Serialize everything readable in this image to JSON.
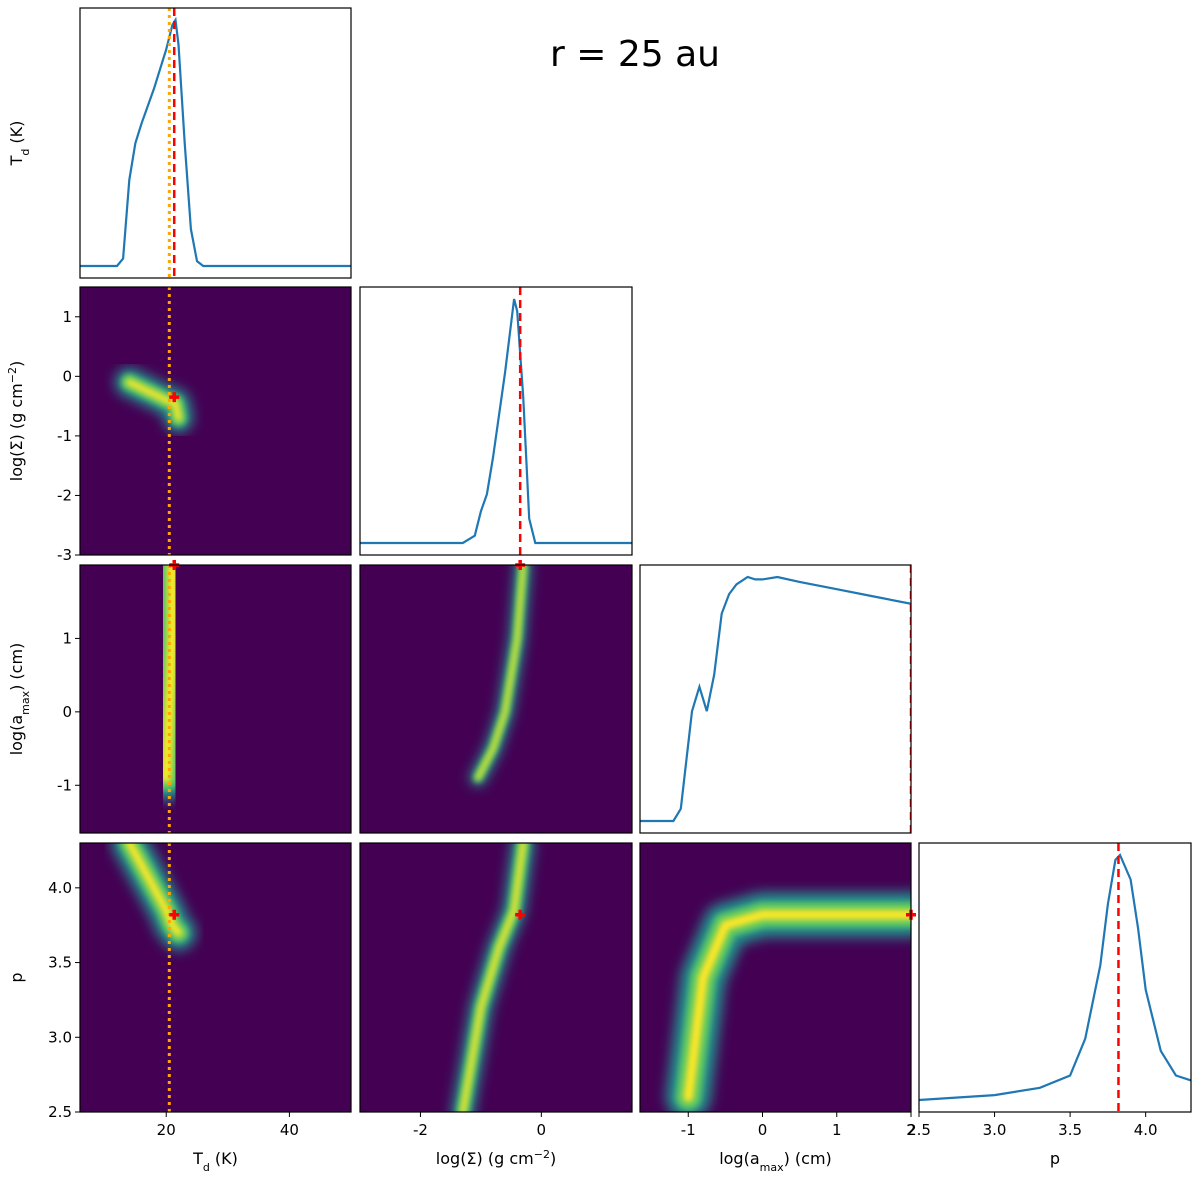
{
  "chart_data": {
    "type": "corner",
    "title": "r = 25 au",
    "colormap": [
      "#440154",
      "#21918c",
      "#5ec962",
      "#fde725"
    ],
    "curve_color": "#1f77b4",
    "truth_color": "#ff0000",
    "alt_color": "#ffa500",
    "truth": [
      21.3,
      -0.35,
      2,
      3.82
    ],
    "alt_Td": 20.5,
    "params": [
      {
        "label": [
          "T",
          "d",
          " (K)"
        ],
        "script": "sub",
        "lim": [
          6,
          50
        ],
        "xticks": [
          20,
          40
        ],
        "yticks": [],
        "x": [
          6,
          8,
          10,
          12,
          13,
          14,
          15,
          16,
          18,
          20,
          21,
          21.5,
          22,
          23,
          24,
          25,
          26,
          28,
          30,
          40,
          50
        ],
        "density": [
          0,
          0,
          0,
          0,
          0.03,
          0.35,
          0.5,
          0.58,
          0.72,
          0.88,
          0.98,
          1,
          0.9,
          0.5,
          0.15,
          0.02,
          0,
          0,
          0,
          0,
          0
        ]
      },
      {
        "label": [
          "log(Σ) (g cm",
          "−2",
          ")"
        ],
        "script": "sup",
        "lim": [
          -3,
          1.5
        ],
        "xticks": [
          -2,
          0
        ],
        "yticks": [
          -3,
          -2,
          -1,
          0,
          1
        ],
        "x": [
          -3,
          -2,
          -1.3,
          -1.1,
          -1.0,
          -0.9,
          -0.8,
          -0.6,
          -0.45,
          -0.4,
          -0.3,
          -0.2,
          -0.1,
          0,
          1.5
        ],
        "density": [
          0,
          0,
          0,
          0.03,
          0.13,
          0.2,
          0.35,
          0.7,
          1,
          0.95,
          0.6,
          0.1,
          0,
          0,
          0
        ]
      },
      {
        "label": [
          "log(a",
          "max",
          ") (cm)"
        ],
        "script": "sub",
        "lim": [
          -1.65,
          2
        ],
        "xticks": [
          -1,
          0,
          1,
          2
        ],
        "yticks": [
          -1,
          0,
          1
        ],
        "x": [
          -1.65,
          -1.2,
          -1.1,
          -0.95,
          -0.85,
          -0.75,
          -0.65,
          -0.55,
          -0.45,
          -0.35,
          -0.2,
          -0.1,
          0,
          0.2,
          0.5,
          1,
          1.5,
          2
        ],
        "density": [
          0,
          0,
          0.05,
          0.45,
          0.55,
          0.45,
          0.6,
          0.85,
          0.93,
          0.97,
          1,
          0.99,
          0.99,
          1,
          0.98,
          0.95,
          0.92,
          0.89
        ]
      },
      {
        "label": [
          "p"
        ],
        "script": "none",
        "lim": [
          2.5,
          4.3
        ],
        "xticks": [
          2.5,
          {
            "value": 3,
            "label": "3.0"
          },
          3.5,
          {
            "value": 4,
            "label": "4.0"
          }
        ],
        "yticks": [
          2.5,
          {
            "value": 3,
            "label": "3.0"
          },
          3.5,
          {
            "value": 4,
            "label": "4.0"
          }
        ],
        "x": [
          2.5,
          3,
          3.3,
          3.5,
          3.6,
          3.7,
          3.75,
          3.8,
          3.83,
          3.9,
          3.95,
          4.0,
          4.1,
          4.2,
          4.3
        ],
        "density": [
          0,
          0.02,
          0.05,
          0.1,
          0.25,
          0.55,
          0.8,
          0.98,
          1,
          0.9,
          0.7,
          0.45,
          0.2,
          0.1,
          0.08
        ]
      }
    ],
    "panels": [
      {
        "x": 0,
        "y": 1,
        "ridge_x": [
          14,
          18,
          20,
          21.5,
          22
        ],
        "ridge_y": [
          -0.1,
          -0.3,
          -0.4,
          -0.45,
          -0.7
        ]
      },
      {
        "x": 0,
        "y": 2,
        "ridge_x": [
          20,
          20.5,
          21,
          21
        ],
        "ridge_y": [
          -0.9,
          0,
          1,
          2
        ]
      },
      {
        "x": 1,
        "y": 2,
        "ridge_x": [
          -1.05,
          -0.8,
          -0.6,
          -0.4,
          -0.3
        ],
        "ridge_y": [
          -0.9,
          -0.5,
          0,
          1,
          2
        ]
      },
      {
        "x": 0,
        "y": 3,
        "ridge_x": [
          14,
          18,
          20,
          21,
          22
        ],
        "ridge_y": [
          4.3,
          4.0,
          3.85,
          3.75,
          3.7
        ]
      },
      {
        "x": 1,
        "y": 3,
        "ridge_x": [
          -1.3,
          -1,
          -0.7,
          -0.45,
          -0.3
        ],
        "ridge_y": [
          2.5,
          3.2,
          3.6,
          3.85,
          4.3
        ]
      },
      {
        "x": 2,
        "y": 3,
        "ridge_x": [
          -1,
          -0.8,
          -0.5,
          0,
          1,
          2
        ],
        "ridge_y": [
          2.6,
          3.4,
          3.75,
          3.82,
          3.82,
          3.82
        ]
      }
    ]
  }
}
